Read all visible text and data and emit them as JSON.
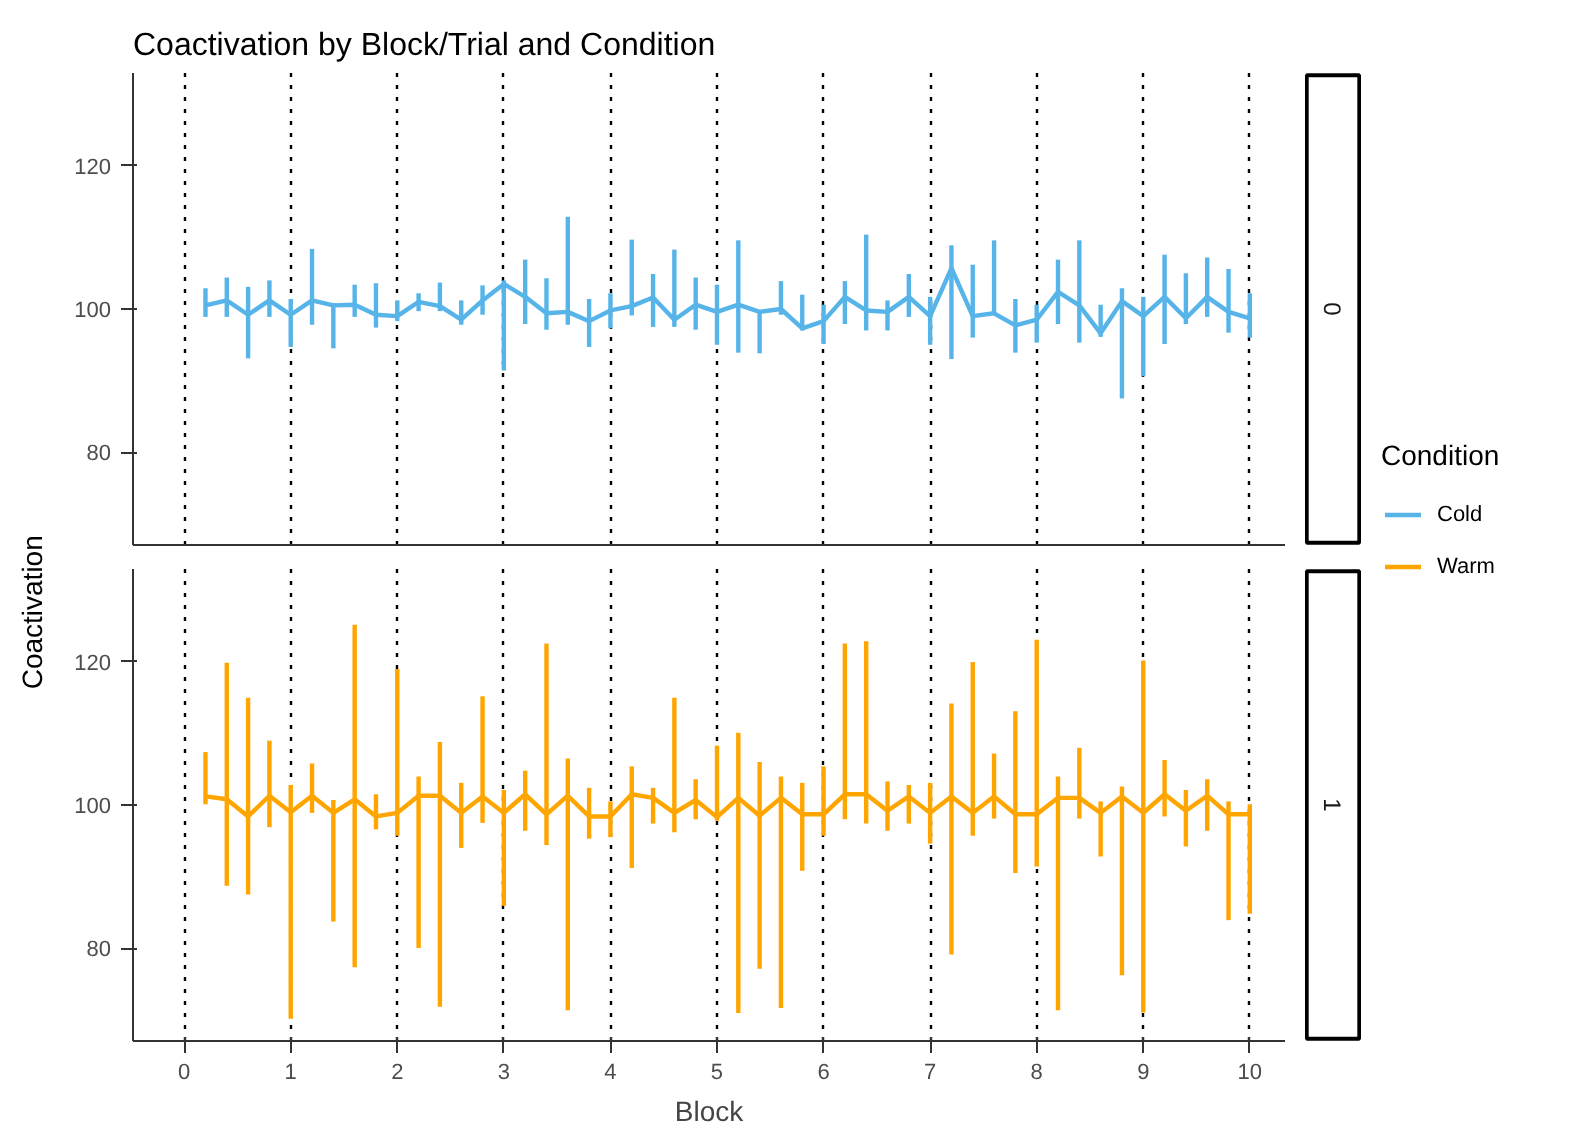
{
  "chart_data": [
    {
      "type": "line",
      "title": "Coactivation by Block/Trial and Condition",
      "ylabel": "Coactivation",
      "legend_title": "Condition",
      "legend": "right",
      "annotations": [
        "0"
      ],
      "grid": "x",
      "tick_labels": "y",
      "xlim": [
        -0.48,
        10.33
      ],
      "xticks": [
        0,
        1,
        2,
        3,
        4,
        5,
        6,
        7,
        8,
        9,
        10
      ],
      "ylim": [
        67,
        133
      ],
      "yticks": [
        80,
        100,
        120
      ],
      "x": [
        0.2,
        0.4,
        0.6,
        0.8,
        1.0,
        1.2,
        1.4,
        1.6,
        1.8,
        2.0,
        2.2,
        2.4,
        2.6,
        2.8,
        3.0,
        3.2,
        3.4,
        3.6,
        3.8,
        4.0,
        4.2,
        4.4,
        4.6,
        4.8,
        5.0,
        5.2,
        5.4,
        5.6,
        5.8,
        6.0,
        6.2,
        6.4,
        6.6,
        6.8,
        7.0,
        7.2,
        7.4,
        7.6,
        7.8,
        8.0,
        8.2,
        8.4,
        8.6,
        8.8,
        9.0,
        9.2,
        9.4,
        9.6,
        9.8,
        10.0
      ],
      "series": [
        {
          "name": "Cold",
          "color": "#56b4e9",
          "values": [
            100.5,
            101.2,
            99.2,
            101.2,
            99.2,
            101.2,
            100.5,
            100.6,
            99.2,
            99,
            101,
            100.4,
            98.5,
            101.2,
            103.5,
            101.7,
            99.4,
            99.6,
            98.3,
            99.8,
            100.4,
            101.6,
            98.5,
            100.6,
            99.6,
            100.6,
            99.6,
            100,
            97.3,
            98.3,
            101.7,
            99.8,
            99.6,
            101.7,
            99,
            105.7,
            99,
            99.4,
            97.7,
            98.5,
            102.4,
            100.5,
            96.6,
            101.1,
            99,
            101.7,
            98.7,
            101.7,
            99.6,
            98.7
          ],
          "errors": [
            [
              98.9,
              102.9
            ],
            [
              98.9,
              104.4
            ],
            [
              93.1,
              103.1
            ],
            [
              98.9,
              104
            ],
            [
              94.7,
              101.4
            ],
            [
              97.8,
              108.4
            ],
            [
              94.5,
              100.8
            ],
            [
              98.9,
              103.4
            ],
            [
              97.4,
              103.6
            ],
            [
              98.3,
              101.2
            ],
            [
              99.7,
              102.2
            ],
            [
              99.7,
              103.7
            ],
            [
              97.8,
              101.2
            ],
            [
              99.2,
              103.3
            ],
            [
              91.4,
              104
            ],
            [
              97.9,
              106.9
            ],
            [
              97.1,
              104.3
            ],
            [
              97.8,
              112.9
            ],
            [
              94.7,
              101.4
            ],
            [
              97.3,
              102.2
            ],
            [
              99.1,
              109.7
            ],
            [
              97.5,
              104.9
            ],
            [
              97.5,
              108.3
            ],
            [
              97.1,
              104.4
            ],
            [
              95,
              103.4
            ],
            [
              93.9,
              109.6
            ],
            [
              93.8,
              99.8
            ],
            [
              99.2,
              103.9
            ],
            [
              97,
              102
            ],
            [
              95.1,
              100.6
            ],
            [
              97.9,
              103.9
            ],
            [
              97,
              110.4
            ],
            [
              97,
              101.2
            ],
            [
              98.9,
              104.9
            ],
            [
              95,
              101.7
            ],
            [
              93,
              108.9
            ],
            [
              96,
              106.2
            ],
            [
              99.2,
              109.6
            ],
            [
              93.9,
              101.4
            ],
            [
              95.3,
              100.6
            ],
            [
              97.9,
              106.9
            ],
            [
              95.3,
              109.6
            ],
            [
              96.1,
              100.6
            ],
            [
              87.5,
              102.9
            ],
            [
              90.6,
              101.7
            ],
            [
              95.1,
              107.6
            ],
            [
              97.9,
              105
            ],
            [
              98.9,
              107.2
            ],
            [
              96.7,
              105.6
            ],
            [
              96,
              102.2
            ]
          ]
        }
      ]
    },
    {
      "type": "line",
      "xlabel": "Block",
      "annotations": [
        "1"
      ],
      "grid": "x",
      "xlim": [
        -0.48,
        10.33
      ],
      "xticks": [
        0,
        1,
        2,
        3,
        4,
        5,
        6,
        7,
        8,
        9,
        10
      ],
      "ylim": [
        67,
        133
      ],
      "yticks": [
        80,
        100,
        120
      ],
      "x": [
        0.2,
        0.4,
        0.6,
        0.8,
        1.0,
        1.2,
        1.4,
        1.6,
        1.8,
        2.0,
        2.2,
        2.4,
        2.6,
        2.8,
        3.0,
        3.2,
        3.4,
        3.6,
        3.8,
        4.0,
        4.2,
        4.4,
        4.6,
        4.8,
        5.0,
        5.2,
        5.4,
        5.6,
        5.8,
        6.0,
        6.2,
        6.4,
        6.6,
        6.8,
        7.0,
        7.2,
        7.4,
        7.6,
        7.8,
        8.0,
        8.2,
        8.4,
        8.6,
        8.8,
        9.0,
        9.2,
        9.4,
        9.6,
        9.8,
        10.0
      ],
      "series": [
        {
          "name": "Warm",
          "color": "#ffa500",
          "values": [
            101.2,
            100.8,
            98.4,
            101.3,
            99,
            101.3,
            98.9,
            100.8,
            98.4,
            98.9,
            101.3,
            101.3,
            98.9,
            101.2,
            98.9,
            101.5,
            98.7,
            101.3,
            98.4,
            98.4,
            101.5,
            101,
            98.9,
            100.7,
            98.3,
            101,
            98.5,
            101,
            98.7,
            98.7,
            101.5,
            101.5,
            99.2,
            101.2,
            98.9,
            101.2,
            98.9,
            101.2,
            98.7,
            98.7,
            101,
            101,
            98.9,
            101.2,
            98.9,
            101.5,
            99.2,
            101.3,
            98.7,
            98.7
          ],
          "errors": [
            [
              100.1,
              107.4
            ],
            [
              88.7,
              119.9
            ],
            [
              87.5,
              115
            ],
            [
              96.9,
              109
            ],
            [
              70.1,
              102.8
            ],
            [
              98.9,
              105.8
            ],
            [
              83.7,
              100.7
            ],
            [
              77.3,
              125.2
            ],
            [
              96.6,
              101.5
            ],
            [
              95.7,
              119
            ],
            [
              80,
              104
            ],
            [
              71.8,
              108.8
            ],
            [
              94,
              103.1
            ],
            [
              97.5,
              115.2
            ],
            [
              85.9,
              102.1
            ],
            [
              96.4,
              104.8
            ],
            [
              94.4,
              122.6
            ],
            [
              71.3,
              106.5
            ],
            [
              95.3,
              102.4
            ],
            [
              95.5,
              100.5
            ],
            [
              91.2,
              105.4
            ],
            [
              97.4,
              102.4
            ],
            [
              96.2,
              115
            ],
            [
              98,
              103.6
            ],
            [
              97.8,
              108.3
            ],
            [
              70.9,
              110.1
            ],
            [
              77.1,
              106
            ],
            [
              71.6,
              104
            ],
            [
              90.8,
              103.1
            ],
            [
              95.7,
              105.4
            ],
            [
              98,
              122.6
            ],
            [
              97.4,
              122.9
            ],
            [
              96.4,
              103.3
            ],
            [
              97.4,
              102.8
            ],
            [
              94.6,
              103.1
            ],
            [
              79.1,
              114.2
            ],
            [
              95.7,
              120
            ],
            [
              98.1,
              107.2
            ],
            [
              90.5,
              113.1
            ],
            [
              91.4,
              123.1
            ],
            [
              71.3,
              104
            ],
            [
              98.1,
              108
            ],
            [
              92.8,
              100.5
            ],
            [
              76.2,
              102.6
            ],
            [
              71,
              120.2
            ],
            [
              98.4,
              106.3
            ],
            [
              94.2,
              102.1
            ],
            [
              96.4,
              103.6
            ],
            [
              83.9,
              100.5
            ],
            [
              84.8,
              100.1
            ]
          ]
        }
      ]
    }
  ]
}
